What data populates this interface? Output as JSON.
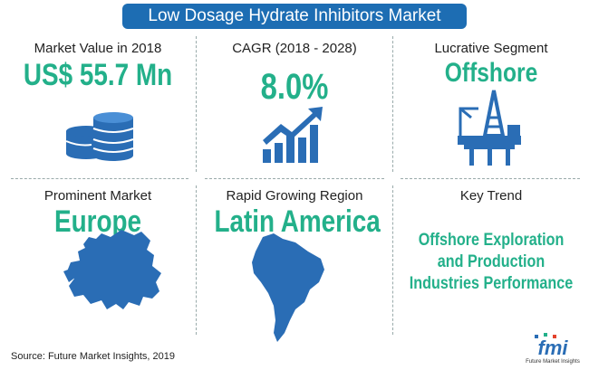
{
  "header": {
    "title": "Low Dosage Hydrate Inhibitors Market"
  },
  "cells": [
    {
      "label": "Market Value in 2018",
      "value": "US$ 55.7 Mn"
    },
    {
      "label": "CAGR (2018 - 2028)",
      "value": "8.0%"
    },
    {
      "label": "Lucrative Segment",
      "value": "Offshore"
    },
    {
      "label": "Prominent Market",
      "value": "Europe"
    },
    {
      "label": "Rapid Growing Region",
      "value": "Latin America"
    },
    {
      "label": "Key Trend",
      "value_lines": [
        "Offshore Exploration",
        "and Production",
        "Industries Performance"
      ]
    }
  ],
  "footer": {
    "source": "Source: Future Market Insights, 2019",
    "logo": "fmi",
    "logo_caption": "Future Market Insights"
  }
}
